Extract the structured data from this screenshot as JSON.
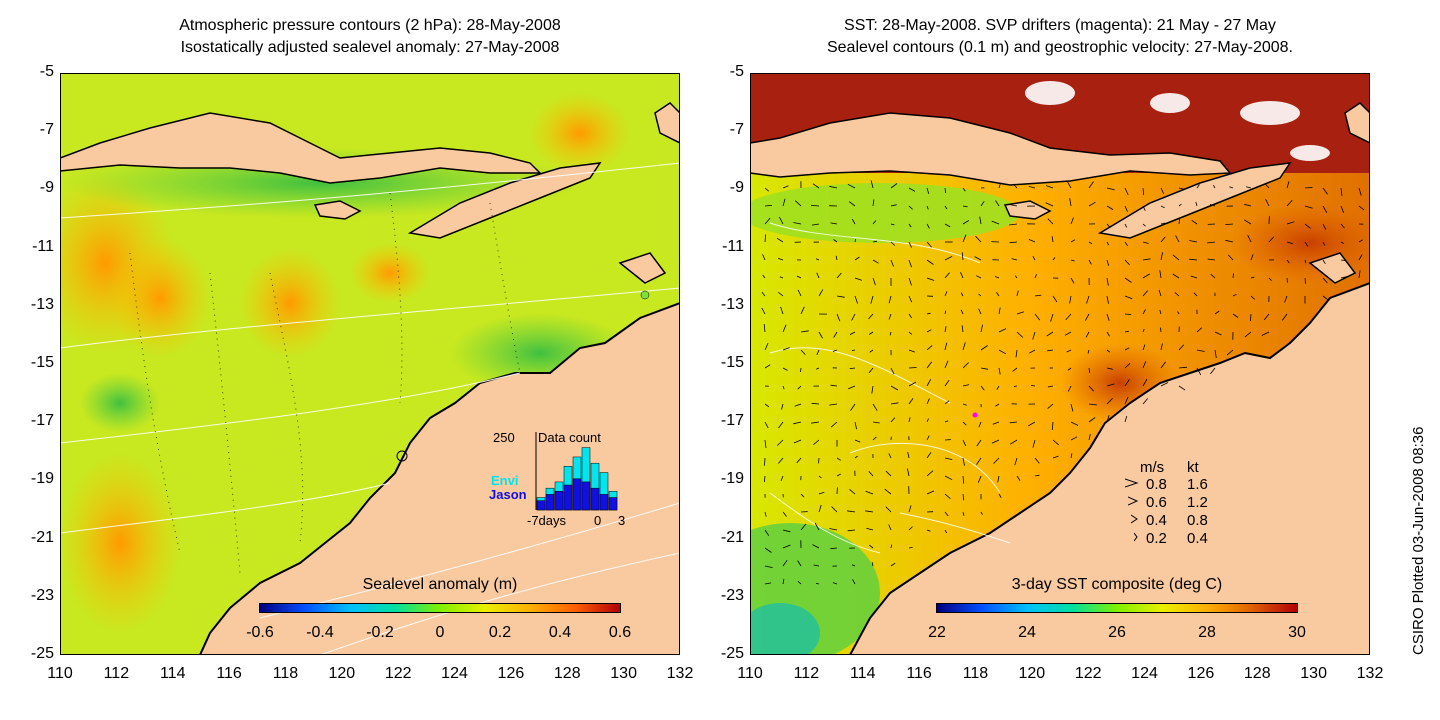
{
  "left_panel": {
    "title_line1": "Atmospheric pressure contours (2 hPa): 28-May-2008",
    "title_line2": "Isostatically adjusted sealevel anomaly: 27-May-2008",
    "colorbar_label": "Sealevel anomaly (m)",
    "colorbar_ticks": [
      "-0.6",
      "-0.4",
      "-0.2",
      "0",
      "0.2",
      "0.4",
      "0.6"
    ],
    "inset": {
      "title": "Data count",
      "ymax_label": "250",
      "series_envi": "Envi",
      "series_jason": "Jason",
      "x_left": "-7days",
      "x_mid": "0",
      "x_right": "3",
      "envi_colour": "#00e5ee",
      "jason_colour": "#1010e0",
      "envi_counts": [
        40,
        70,
        90,
        140,
        170,
        200,
        150,
        120,
        60
      ],
      "jason_counts": [
        30,
        50,
        60,
        80,
        100,
        90,
        70,
        50,
        40
      ]
    }
  },
  "right_panel": {
    "title_line1": "SST: 28-May-2008. SVP drifters (magenta): 21 May - 27 May",
    "title_line2": "Sealevel contours (0.1 m) and geostrophic velocity: 27-May-2008.",
    "colorbar_label": "3-day SST composite (deg C)",
    "colorbar_ticks": [
      "22",
      "24",
      "26",
      "28",
      "30"
    ],
    "legend": {
      "header_ms": "m/s",
      "header_kt": "kt",
      "rows": [
        {
          "ms": "0.8",
          "kt": "1.6"
        },
        {
          "ms": "0.6",
          "kt": "1.2"
        },
        {
          "ms": "0.4",
          "kt": "0.8"
        },
        {
          "ms": "0.2",
          "kt": "0.4"
        }
      ]
    }
  },
  "y_ticks": [
    "-5",
    "-7",
    "-9",
    "-11",
    "-13",
    "-15",
    "-17",
    "-19",
    "-21",
    "-23",
    "-25"
  ],
  "x_ticks": [
    "110",
    "112",
    "114",
    "116",
    "118",
    "120",
    "122",
    "124",
    "126",
    "128",
    "130",
    "132"
  ],
  "credit": "CSIRO Plotted 03-Jun-2008 08:36",
  "colors": {
    "land": "#f9c9a0",
    "sla_ramp": [
      "#000080",
      "#0050ff",
      "#00c0ff",
      "#00e0a0",
      "#80f000",
      "#e8f000",
      "#ffb000",
      "#ff6000",
      "#b00000"
    ],
    "sst_ramp": [
      "#000080",
      "#0050ff",
      "#00c0ff",
      "#00e0a0",
      "#80f000",
      "#e8f000",
      "#ffb000",
      "#e06000",
      "#b00000"
    ]
  }
}
